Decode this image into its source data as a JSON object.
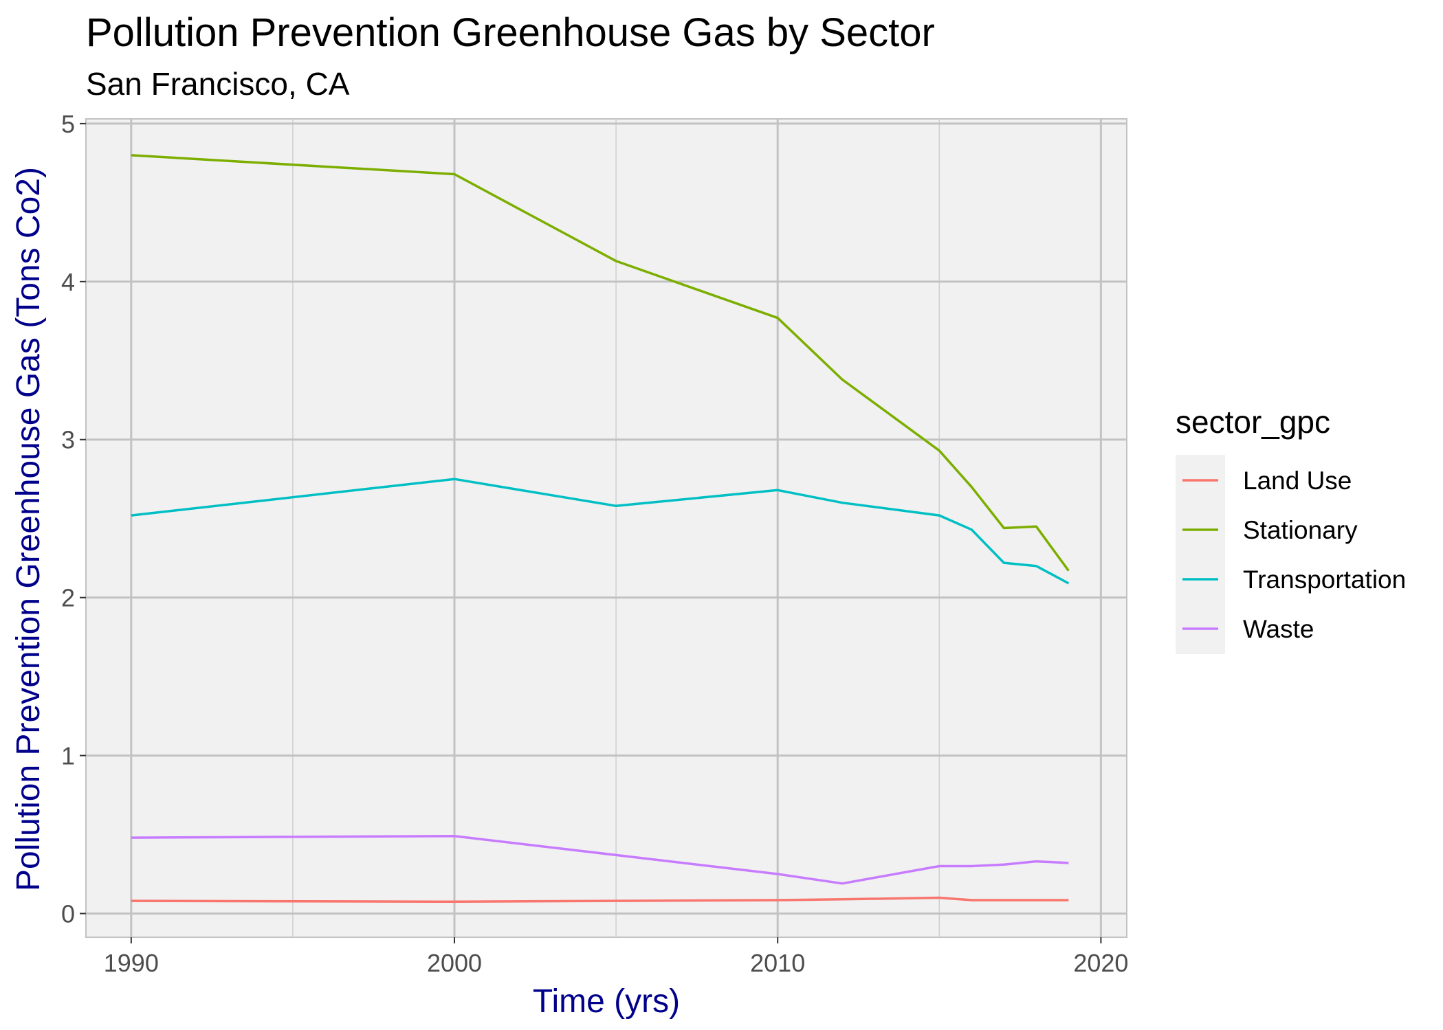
{
  "chart_data": {
    "type": "line",
    "title": "Pollution Prevention Greenhouse Gas by Sector",
    "subtitle": "San Francisco, CA",
    "xlabel": "Time (yrs)",
    "ylabel": "Pollution Prevention Greenhouse Gas (Tons Co2)",
    "xlim": [
      1988.6,
      2020.8
    ],
    "ylim": [
      -0.15,
      5.03
    ],
    "x_ticks": [
      1990,
      2000,
      2010,
      2020
    ],
    "x_tick_labels": [
      "1990",
      "2000",
      "2010",
      "2020"
    ],
    "y_ticks": [
      0,
      1,
      2,
      3,
      4,
      5
    ],
    "y_tick_labels": [
      "0",
      "1",
      "2",
      "3",
      "4",
      "5"
    ],
    "grid": true,
    "legend_title": "sector_gpc",
    "legend_position": "right",
    "series": [
      {
        "name": "Land Use",
        "color": "#F8766D",
        "x": [
          1990,
          2000,
          2005,
          2010,
          2012,
          2015,
          2016,
          2017,
          2018,
          2019
        ],
        "y": [
          0.08,
          0.075,
          0.08,
          0.085,
          0.09,
          0.1,
          0.085,
          0.085,
          0.085,
          0.085
        ]
      },
      {
        "name": "Stationary",
        "color": "#7CAE00",
        "x": [
          1990,
          2000,
          2005,
          2010,
          2012,
          2015,
          2016,
          2017,
          2018,
          2019
        ],
        "y": [
          4.8,
          4.68,
          4.13,
          3.77,
          3.38,
          2.93,
          2.7,
          2.44,
          2.45,
          2.17
        ]
      },
      {
        "name": "Transportation",
        "color": "#00BFC4",
        "x": [
          1990,
          2000,
          2005,
          2010,
          2012,
          2015,
          2016,
          2017,
          2018,
          2019
        ],
        "y": [
          2.52,
          2.75,
          2.58,
          2.68,
          2.6,
          2.52,
          2.43,
          2.22,
          2.2,
          2.09
        ]
      },
      {
        "name": "Waste",
        "color": "#C77CFF",
        "x": [
          1990,
          2000,
          2005,
          2010,
          2012,
          2015,
          2016,
          2017,
          2018,
          2019
        ],
        "y": [
          0.48,
          0.49,
          0.37,
          0.25,
          0.19,
          0.3,
          0.3,
          0.31,
          0.33,
          0.32
        ]
      }
    ]
  }
}
